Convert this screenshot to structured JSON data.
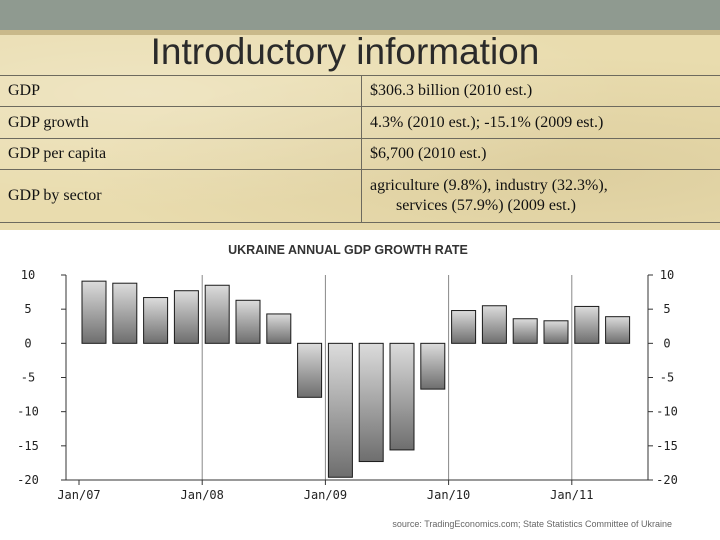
{
  "slide": {
    "title": "Introductory information"
  },
  "facts": [
    {
      "label": "GDP",
      "value": "$306.3 billion (2010 est.)"
    },
    {
      "label": "GDP growth",
      "value": "4.3% (2010 est.);  -15.1% (2009 est.)"
    },
    {
      "label": "GDP per capita",
      "value": "$6,700 (2010 est.)"
    },
    {
      "label": "GDP by sector",
      "value_line1": "agriculture (9.8%), industry (32.3%),",
      "value_line2": "services (57.9%) (2009 est.)"
    }
  ],
  "chart_data": {
    "type": "bar",
    "title": "UKRAINE ANNUAL GDP GROWTH RATE",
    "source": "source: TradingEconomics.com; State Statistics Committee of Ukraine",
    "xlabel": "",
    "ylabel": "",
    "ylim": [
      -20,
      10
    ],
    "yticks": [
      10,
      5,
      0,
      -5,
      -10,
      -15,
      -20
    ],
    "xtick_labels": [
      "Jan/07",
      "Jan/08",
      "Jan/09",
      "Jan/10",
      "Jan/11"
    ],
    "grid": "vertical lines at each year",
    "categories": [
      "Q1 2007",
      "Q2 2007",
      "Q3 2007",
      "Q4 2007",
      "Q1 2008",
      "Q2 2008",
      "Q3 2008",
      "Q4 2008",
      "Q1 2009",
      "Q2 2009",
      "Q3 2009",
      "Q4 2009",
      "Q1 2010",
      "Q2 2010",
      "Q3 2010",
      "Q4 2010",
      "Q1 2011",
      "Q2 2011"
    ],
    "values": [
      9.1,
      8.8,
      6.7,
      7.7,
      8.5,
      6.3,
      4.3,
      -7.9,
      -19.6,
      -17.3,
      -15.6,
      -6.7,
      4.8,
      5.5,
      3.6,
      3.3,
      5.4,
      3.9
    ],
    "colors": {
      "bar_top": "#dcdcdc",
      "bar_bottom": "#6e6e6e",
      "bar_stroke": "#1a1a1a",
      "axis": "#333333",
      "grid": "#888888"
    }
  }
}
